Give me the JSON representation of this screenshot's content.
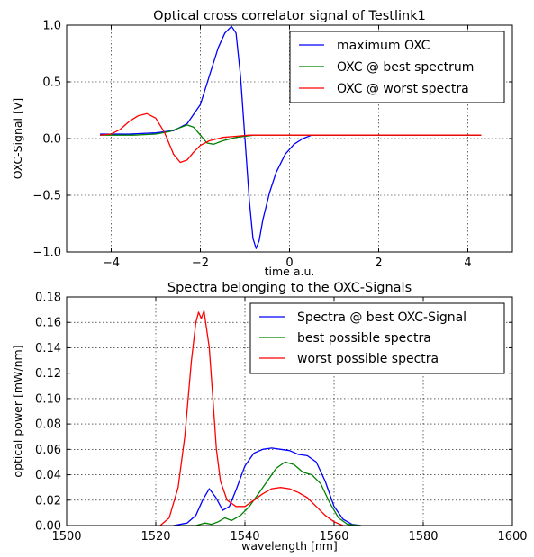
{
  "chart_data": [
    {
      "type": "line",
      "title": "Optical cross correlator signal of Testlink1",
      "xlabel": "time a.u.",
      "ylabel": "OXC-Signal [V]",
      "xlim": [
        -5,
        5
      ],
      "ylim": [
        -1.0,
        1.0
      ],
      "xticks": [
        -4,
        -2,
        0,
        2,
        4
      ],
      "xtick_labels": [
        "−4",
        "−2",
        "0",
        "2",
        "4"
      ],
      "yticks": [
        1.0,
        0.5,
        0.0,
        -0.5,
        -1.0
      ],
      "ytick_labels": [
        "1.0",
        "0.5",
        "0.0",
        "−0.5",
        "−1.0"
      ],
      "grid": true,
      "legend_position": "top-right",
      "series": [
        {
          "name": "maximum OXC",
          "color": "#0000ff",
          "x": [
            -4.25,
            -3.6,
            -3.0,
            -2.6,
            -2.3,
            -2.0,
            -1.8,
            -1.6,
            -1.45,
            -1.3,
            -1.2,
            -1.1,
            -1.0,
            -0.9,
            -0.82,
            -0.75,
            -0.68,
            -0.6,
            -0.45,
            -0.3,
            -0.1,
            0.1,
            0.3,
            0.5,
            4.3
          ],
          "y": [
            0.04,
            0.04,
            0.05,
            0.07,
            0.13,
            0.3,
            0.55,
            0.8,
            0.93,
            0.99,
            0.93,
            0.55,
            0.0,
            -0.55,
            -0.88,
            -0.97,
            -0.9,
            -0.72,
            -0.48,
            -0.3,
            -0.14,
            -0.05,
            0.0,
            0.03,
            0.03
          ]
        },
        {
          "name": "OXC @ best spectrum",
          "color": "#008000",
          "x": [
            -4.25,
            -3.5,
            -3.0,
            -2.7,
            -2.5,
            -2.3,
            -2.15,
            -2.0,
            -1.85,
            -1.7,
            -1.5,
            -1.2,
            -0.8,
            4.3
          ],
          "y": [
            0.03,
            0.03,
            0.04,
            0.06,
            0.09,
            0.12,
            0.1,
            0.03,
            -0.04,
            -0.05,
            -0.02,
            0.01,
            0.03,
            0.03
          ]
        },
        {
          "name": "OXC @ worst spectra",
          "color": "#ff0000",
          "x": [
            -4.25,
            -4.0,
            -3.8,
            -3.6,
            -3.4,
            -3.2,
            -3.0,
            -2.8,
            -2.6,
            -2.45,
            -2.3,
            -2.15,
            -2.0,
            -1.8,
            -1.5,
            -1.2,
            -0.9,
            -0.6,
            4.3
          ],
          "y": [
            0.03,
            0.04,
            0.08,
            0.15,
            0.2,
            0.22,
            0.18,
            0.05,
            -0.14,
            -0.21,
            -0.19,
            -0.12,
            -0.06,
            -0.02,
            0.01,
            0.02,
            0.03,
            0.03,
            0.03
          ]
        }
      ]
    },
    {
      "type": "line",
      "title": "Spectra belonging to the OXC-Signals",
      "xlabel": "wavelength [nm]",
      "ylabel": "optical power [mW/nm]",
      "xlim": [
        1500,
        1600
      ],
      "ylim": [
        0,
        0.18
      ],
      "xticks": [
        1500,
        1520,
        1540,
        1560,
        1580,
        1600
      ],
      "xtick_labels": [
        "1500",
        "1520",
        "1540",
        "1560",
        "1580",
        "1600"
      ],
      "yticks": [
        0.0,
        0.02,
        0.04,
        0.06,
        0.08,
        0.1,
        0.12,
        0.14,
        0.16,
        0.18
      ],
      "ytick_labels": [
        "0.00",
        "0.02",
        "0.04",
        "0.06",
        "0.08",
        "0.10",
        "0.12",
        "0.14",
        "0.16",
        "0.18"
      ],
      "grid": true,
      "legend_position": "top-right",
      "series": [
        {
          "name": "Spectra @ best OXC-Signal",
          "color": "#0000ff",
          "x": [
            1524,
            1527,
            1529,
            1530.5,
            1532,
            1533.5,
            1535,
            1536.5,
            1538,
            1540,
            1542,
            1544,
            1546,
            1548,
            1550,
            1552,
            1554,
            1556,
            1558,
            1560,
            1562,
            1564,
            1566
          ],
          "y": [
            0.0,
            0.002,
            0.008,
            0.02,
            0.029,
            0.022,
            0.012,
            0.015,
            0.028,
            0.047,
            0.057,
            0.06,
            0.061,
            0.06,
            0.059,
            0.056,
            0.055,
            0.05,
            0.035,
            0.015,
            0.005,
            0.001,
            0.0
          ]
        },
        {
          "name": "best possible spectra",
          "color": "#008000",
          "x": [
            1526,
            1529,
            1531,
            1532.5,
            1534,
            1535.5,
            1537,
            1539,
            1541,
            1543,
            1545,
            1547,
            1549,
            1551,
            1553,
            1555,
            1557,
            1559,
            1561,
            1563,
            1566
          ],
          "y": [
            0.0,
            0.0,
            0.002,
            0.001,
            0.003,
            0.006,
            0.004,
            0.008,
            0.015,
            0.025,
            0.035,
            0.045,
            0.05,
            0.048,
            0.042,
            0.04,
            0.033,
            0.018,
            0.006,
            0.001,
            0.0
          ]
        },
        {
          "name": "worst possible spectra",
          "color": "#ff0000",
          "x": [
            1521,
            1523,
            1525,
            1526.5,
            1528,
            1529,
            1529.6,
            1530.2,
            1530.8,
            1531.4,
            1532,
            1532.8,
            1533.6,
            1534.5,
            1536,
            1538,
            1540,
            1542,
            1544,
            1546,
            1548,
            1550,
            1552,
            1554,
            1556,
            1558,
            1560,
            1562
          ],
          "y": [
            0.0,
            0.006,
            0.03,
            0.07,
            0.13,
            0.16,
            0.168,
            0.163,
            0.169,
            0.155,
            0.14,
            0.1,
            0.06,
            0.035,
            0.02,
            0.015,
            0.015,
            0.02,
            0.025,
            0.029,
            0.03,
            0.029,
            0.026,
            0.022,
            0.015,
            0.008,
            0.003,
            0.0
          ]
        }
      ]
    }
  ]
}
